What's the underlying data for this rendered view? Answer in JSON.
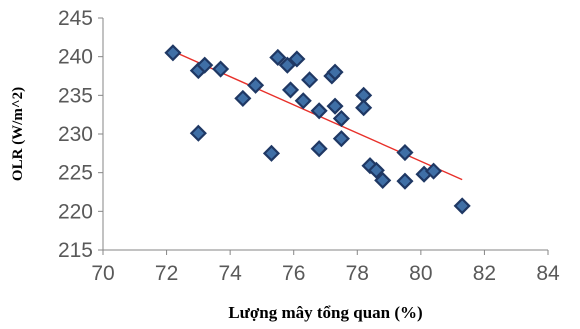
{
  "chart_data": {
    "type": "scatter",
    "xlabel": "Lượng mây tổng quan (%)",
    "ylabel": "OLR (W/m^2)",
    "xlim": [
      70,
      84
    ],
    "ylim": [
      215,
      245
    ],
    "x_ticks": [
      "70",
      "72",
      "74",
      "76",
      "78",
      "80",
      "82",
      "84"
    ],
    "y_ticks": [
      "245",
      "240",
      "235",
      "230",
      "225",
      "220",
      "215"
    ],
    "grid": false,
    "legend": "none",
    "marker": "diamond",
    "colors": {
      "marker_fill": "#3f6fa6",
      "marker_edge": "#1f3864",
      "trendline": "#e8302a",
      "axis": "#868686"
    },
    "trendline": {
      "type": "linear",
      "x": [
        72.2,
        81.3
      ],
      "y": [
        240.7,
        224.1
      ]
    },
    "series": [
      {
        "points": [
          {
            "x": 72.2,
            "y": 240.5
          },
          {
            "x": 73.0,
            "y": 238.2
          },
          {
            "x": 73.2,
            "y": 238.9
          },
          {
            "x": 73.7,
            "y": 238.4
          },
          {
            "x": 73.0,
            "y": 230.1
          },
          {
            "x": 74.4,
            "y": 234.6
          },
          {
            "x": 74.8,
            "y": 236.3
          },
          {
            "x": 75.3,
            "y": 227.5
          },
          {
            "x": 75.5,
            "y": 239.9
          },
          {
            "x": 75.8,
            "y": 238.9
          },
          {
            "x": 76.1,
            "y": 239.7
          },
          {
            "x": 75.9,
            "y": 235.7
          },
          {
            "x": 76.3,
            "y": 234.3
          },
          {
            "x": 76.5,
            "y": 237.0
          },
          {
            "x": 76.8,
            "y": 233.0
          },
          {
            "x": 76.8,
            "y": 228.1
          },
          {
            "x": 77.2,
            "y": 237.5
          },
          {
            "x": 77.3,
            "y": 238.0
          },
          {
            "x": 77.3,
            "y": 233.6
          },
          {
            "x": 77.5,
            "y": 232.0
          },
          {
            "x": 77.5,
            "y": 229.4
          },
          {
            "x": 78.2,
            "y": 235.0
          },
          {
            "x": 78.2,
            "y": 233.4
          },
          {
            "x": 78.4,
            "y": 225.9
          },
          {
            "x": 78.6,
            "y": 225.3
          },
          {
            "x": 78.8,
            "y": 224.0
          },
          {
            "x": 79.5,
            "y": 227.6
          },
          {
            "x": 79.5,
            "y": 223.9
          },
          {
            "x": 80.1,
            "y": 224.8
          },
          {
            "x": 80.4,
            "y": 225.2
          },
          {
            "x": 81.3,
            "y": 220.7
          }
        ]
      }
    ]
  }
}
